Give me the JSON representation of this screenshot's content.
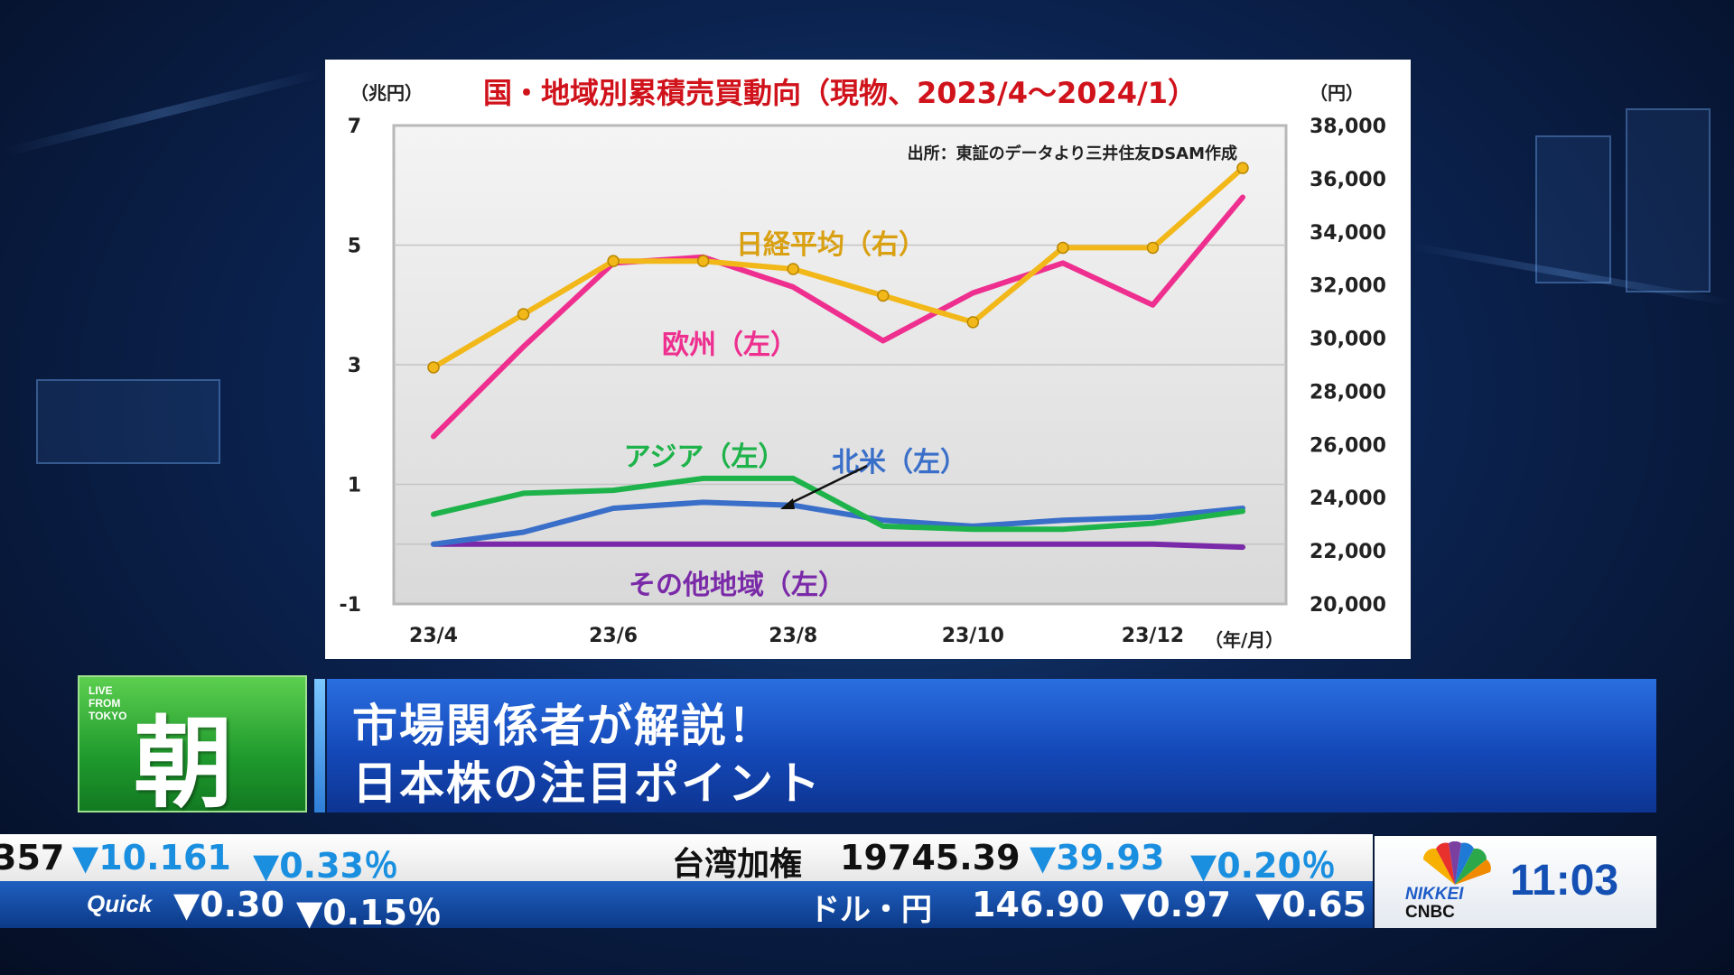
{
  "chart_data": {
    "type": "line",
    "title": "国・地域別累積売買動向（現物、2023/4～2024/1）",
    "source_note": "出所：東証のデータより三井住友DSAM作成",
    "y_left_unit": "（兆円）",
    "y_right_unit": "（円）",
    "x_unit": "（年/月）",
    "x_labels": [
      "23/4",
      "23/6",
      "23/8",
      "23/10",
      "23/12"
    ],
    "x": [
      "23/4",
      "23/5",
      "23/6",
      "23/7",
      "23/8",
      "23/9",
      "23/10",
      "23/11",
      "23/12",
      "24/1"
    ],
    "y_left_ticks": [
      "7",
      "5",
      "3",
      "1",
      "-1"
    ],
    "y_right_ticks": [
      "38,000",
      "36,000",
      "34,000",
      "32,000",
      "30,000",
      "28,000",
      "26,000",
      "24,000",
      "22,000",
      "20,000"
    ],
    "y_left_range": [
      -1,
      7
    ],
    "y_right_range": [
      20000,
      38000
    ],
    "series": [
      {
        "name": "日経平均（右）",
        "axis": "right",
        "color": "#f2b81a",
        "markers": true,
        "values": [
          28900,
          30900,
          32900,
          32900,
          32600,
          31600,
          30600,
          33400,
          33400,
          36400
        ]
      },
      {
        "name": "欧州（左）",
        "axis": "left",
        "color": "#ee2f8f",
        "markers": false,
        "values": [
          1.8,
          3.3,
          4.7,
          4.8,
          4.3,
          3.4,
          4.2,
          4.7,
          4.0,
          5.8
        ]
      },
      {
        "name": "アジア（左）",
        "axis": "left",
        "color": "#1db34a",
        "markers": false,
        "values": [
          0.5,
          0.85,
          0.9,
          1.1,
          1.1,
          0.3,
          0.25,
          0.25,
          0.35,
          0.55
        ]
      },
      {
        "name": "北米（左）",
        "axis": "left",
        "color": "#3a6fc9",
        "markers": false,
        "values": [
          0.0,
          0.2,
          0.6,
          0.7,
          0.65,
          0.4,
          0.3,
          0.4,
          0.45,
          0.6
        ]
      },
      {
        "name": "その他地域（左）",
        "axis": "left",
        "color": "#7a2aa8",
        "markers": false,
        "values": [
          0.0,
          0.0,
          0.0,
          0.0,
          0.0,
          0.0,
          0.0,
          0.0,
          0.0,
          -0.05
        ]
      }
    ],
    "grid": true,
    "legend": "inline labels"
  },
  "colors": {
    "title": "#d0121b",
    "nikkei_label": "#d9a012",
    "europe_label": "#ee2f8f",
    "asia_label": "#1db34a",
    "namerica_label": "#3a6fc9",
    "other_label": "#7a2aa8"
  },
  "lower_third": {
    "live_text": "LIVE\nFROM\nTOKYO",
    "logo_char": "朝",
    "headline_1": "市場関係者が解説！",
    "headline_2": "日本株の注目ポイント"
  },
  "ticker": {
    "top": [
      {
        "text": "357",
        "dir": ""
      },
      {
        "text": "▼10.161",
        "dir": "down"
      },
      {
        "text": "▼0.33％",
        "dir": "down"
      },
      {
        "text": "台湾加権",
        "dir": ""
      },
      {
        "text": "19745.39",
        "dir": ""
      },
      {
        "text": "▼39.93",
        "dir": "down"
      },
      {
        "text": "▼0.20％",
        "dir": "down"
      }
    ],
    "bottom": [
      {
        "text": "Quick",
        "dir": ""
      },
      {
        "text": "▼0.30",
        "dir": "down"
      },
      {
        "text": "▼0.15％",
        "dir": "down"
      },
      {
        "text": "ドル・円",
        "dir": ""
      },
      {
        "text": "146.90",
        "dir": ""
      },
      {
        "text": "▼0.97",
        "dir": "down"
      },
      {
        "text": "▼0.65",
        "dir": "down"
      }
    ]
  },
  "brand": {
    "nikkei": "NIKKEI",
    "cnbc": "CNBC",
    "clock": "11:03"
  }
}
